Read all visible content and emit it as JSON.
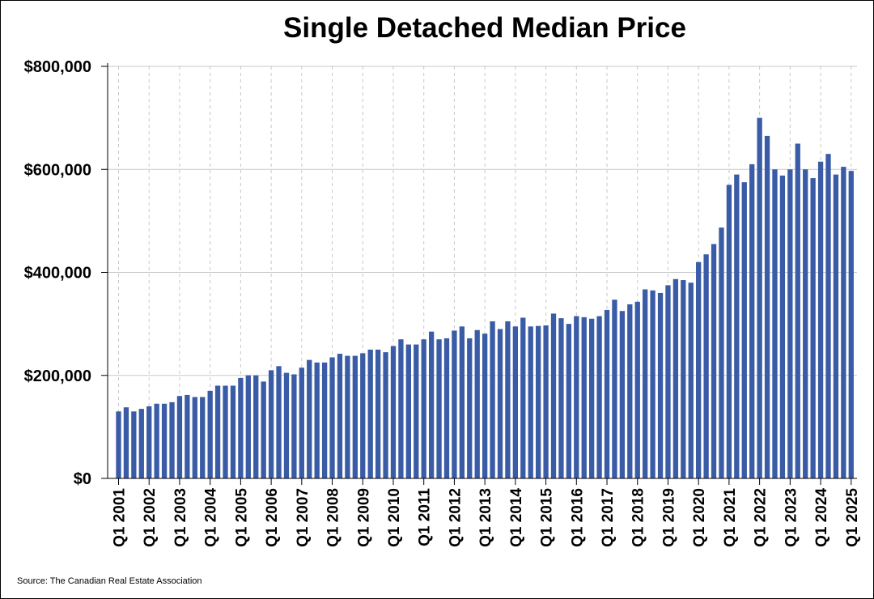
{
  "chart_data": {
    "type": "bar",
    "title": "Single Detached Median Price",
    "source": "Source: The Canadian Real Estate Association",
    "xlabel": "",
    "ylabel": "",
    "ylim": [
      0,
      800000
    ],
    "y_ticks": [
      {
        "value": 0,
        "label": "$0"
      },
      {
        "value": 200000,
        "label": "$200,000"
      },
      {
        "value": 400000,
        "label": "$400,000"
      },
      {
        "value": 600000,
        "label": "$600,000"
      },
      {
        "value": 800000,
        "label": "$800,000"
      }
    ],
    "x_tick_labels": [
      "Q1 2001",
      "Q1 2002",
      "Q1 2003",
      "Q1 2004",
      "Q1 2005",
      "Q1 2006",
      "Q1 2007",
      "Q1 2008",
      "Q1 2009",
      "Q1 2010",
      "Q1 2011",
      "Q1 2012",
      "Q1 2013",
      "Q1 2014",
      "Q1 2015",
      "Q1 2016",
      "Q1 2017",
      "Q1 2018",
      "Q1 2019",
      "Q1 2020",
      "Q1 2021",
      "Q1 2022",
      "Q1 2023",
      "Q1 2024",
      "Q1 2025"
    ],
    "categories": [
      "Q1 2001",
      "Q2 2001",
      "Q3 2001",
      "Q4 2001",
      "Q1 2002",
      "Q2 2002",
      "Q3 2002",
      "Q4 2002",
      "Q1 2003",
      "Q2 2003",
      "Q3 2003",
      "Q4 2003",
      "Q1 2004",
      "Q2 2004",
      "Q3 2004",
      "Q4 2004",
      "Q1 2005",
      "Q2 2005",
      "Q3 2005",
      "Q4 2005",
      "Q1 2006",
      "Q2 2006",
      "Q3 2006",
      "Q4 2006",
      "Q1 2007",
      "Q2 2007",
      "Q3 2007",
      "Q4 2007",
      "Q1 2008",
      "Q2 2008",
      "Q3 2008",
      "Q4 2008",
      "Q1 2009",
      "Q2 2009",
      "Q3 2009",
      "Q4 2009",
      "Q1 2010",
      "Q2 2010",
      "Q3 2010",
      "Q4 2010",
      "Q1 2011",
      "Q2 2011",
      "Q3 2011",
      "Q4 2011",
      "Q1 2012",
      "Q2 2012",
      "Q3 2012",
      "Q4 2012",
      "Q1 2013",
      "Q2 2013",
      "Q3 2013",
      "Q4 2013",
      "Q1 2014",
      "Q2 2014",
      "Q3 2014",
      "Q4 2014",
      "Q1 2015",
      "Q2 2015",
      "Q3 2015",
      "Q4 2015",
      "Q1 2016",
      "Q2 2016",
      "Q3 2016",
      "Q4 2016",
      "Q1 2017",
      "Q2 2017",
      "Q3 2017",
      "Q4 2017",
      "Q1 2018",
      "Q2 2018",
      "Q3 2018",
      "Q4 2018",
      "Q1 2019",
      "Q2 2019",
      "Q3 2019",
      "Q4 2019",
      "Q1 2020",
      "Q2 2020",
      "Q3 2020",
      "Q4 2020",
      "Q1 2021",
      "Q2 2021",
      "Q3 2021",
      "Q4 2021",
      "Q1 2022",
      "Q2 2022",
      "Q3 2022",
      "Q4 2022",
      "Q1 2023",
      "Q2 2023",
      "Q3 2023",
      "Q4 2023",
      "Q1 2024",
      "Q2 2024",
      "Q3 2024",
      "Q4 2024",
      "Q1 2025"
    ],
    "values": [
      130000,
      138000,
      130000,
      135000,
      140000,
      145000,
      145000,
      148000,
      160000,
      162000,
      158000,
      158000,
      170000,
      180000,
      180000,
      180000,
      195000,
      200000,
      200000,
      188000,
      210000,
      218000,
      205000,
      202000,
      215000,
      230000,
      225000,
      225000,
      235000,
      242000,
      238000,
      238000,
      243000,
      250000,
      250000,
      245000,
      257000,
      270000,
      260000,
      260000,
      270000,
      285000,
      270000,
      272000,
      287000,
      295000,
      272000,
      288000,
      281000,
      305000,
      290000,
      305000,
      295000,
      312000,
      295000,
      296000,
      297000,
      320000,
      311000,
      300000,
      315000,
      313000,
      310000,
      315000,
      327000,
      347000,
      325000,
      338000,
      343000,
      367000,
      365000,
      360000,
      375000,
      387000,
      385000,
      380000,
      420000,
      435000,
      455000,
      487000,
      570000,
      590000,
      575000,
      610000,
      700000,
      665000,
      600000,
      588000,
      600000,
      650000,
      600000,
      583000,
      615000,
      630000,
      590000,
      605000,
      597000
    ],
    "colors": {
      "bar": "#3a5ba6",
      "grid": "#c8c8c8",
      "axis": "#000000"
    }
  }
}
